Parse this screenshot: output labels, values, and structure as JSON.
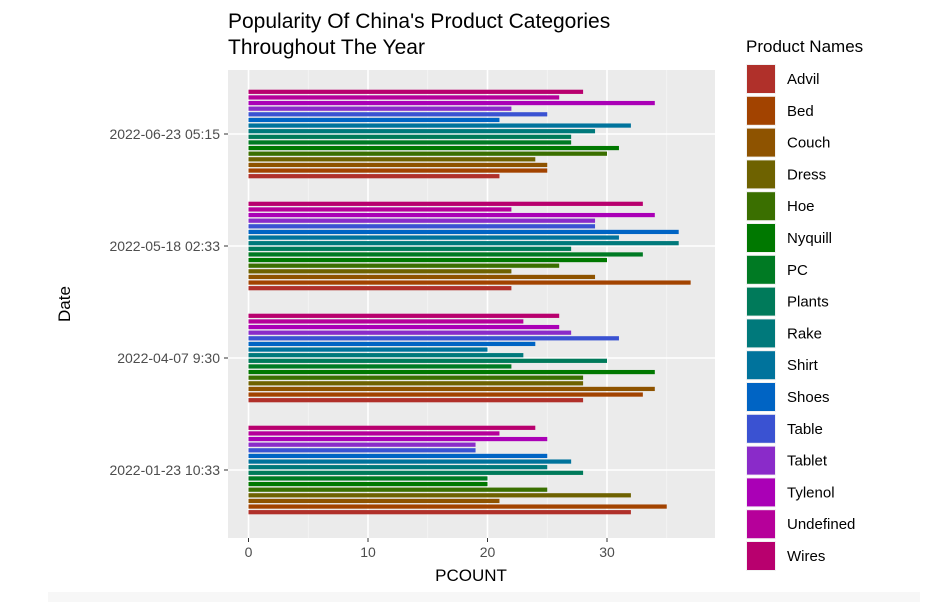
{
  "chart_data": {
    "type": "bar",
    "orientation": "horizontal",
    "title_lines": [
      "Popularity Of China's Product Categories",
      "Throughout The Year"
    ],
    "xlabel": "PCOUNT",
    "ylabel": "Date",
    "xlim": [
      0,
      39
    ],
    "xticks": [
      0,
      10,
      20,
      30
    ],
    "grid": true,
    "legend": {
      "title": "Product Names",
      "placement": "right"
    },
    "categories": [
      "2022-01-23 10:33",
      "2022-04-07 9:30",
      "2022-05-18 02:33",
      "2022-06-23 05:15"
    ],
    "series": [
      {
        "name": "Advil",
        "color": "#B0302A",
        "values": [
          32,
          28,
          22,
          21
        ]
      },
      {
        "name": "Bed",
        "color": "#A24300",
        "values": [
          35,
          33,
          37,
          25
        ]
      },
      {
        "name": "Couch",
        "color": "#8E5300",
        "values": [
          21,
          34,
          29,
          25
        ]
      },
      {
        "name": "Dress",
        "color": "#6E6200",
        "values": [
          32,
          28,
          22,
          24
        ]
      },
      {
        "name": "Hoe",
        "color": "#3A6F00",
        "values": [
          25,
          28,
          26,
          30
        ]
      },
      {
        "name": "Nyquill",
        "color": "#007800",
        "values": [
          20,
          34,
          30,
          31
        ]
      },
      {
        "name": "PC",
        "color": "#007A23",
        "values": [
          20,
          22,
          33,
          27
        ]
      },
      {
        "name": "Plants",
        "color": "#007A5A",
        "values": [
          28,
          30,
          27,
          27
        ]
      },
      {
        "name": "Rake",
        "color": "#00797B",
        "values": [
          25,
          23,
          36,
          29
        ]
      },
      {
        "name": "Shirt",
        "color": "#00739C",
        "values": [
          27,
          20,
          31,
          32
        ]
      },
      {
        "name": "Shoes",
        "color": "#0064C4",
        "values": [
          25,
          24,
          36,
          21
        ]
      },
      {
        "name": "Table",
        "color": "#3A52D2",
        "values": [
          19,
          31,
          29,
          25
        ]
      },
      {
        "name": "Tablet",
        "color": "#8A2BC9",
        "values": [
          19,
          27,
          29,
          22
        ]
      },
      {
        "name": "Tylenol",
        "color": "#AA00B6",
        "values": [
          25,
          26,
          34,
          34
        ]
      },
      {
        "name": "Undefined",
        "color": "#B6009A",
        "values": [
          21,
          23,
          22,
          26
        ]
      },
      {
        "name": "Wires",
        "color": "#B8006E",
        "values": [
          24,
          26,
          33,
          28
        ]
      }
    ]
  }
}
